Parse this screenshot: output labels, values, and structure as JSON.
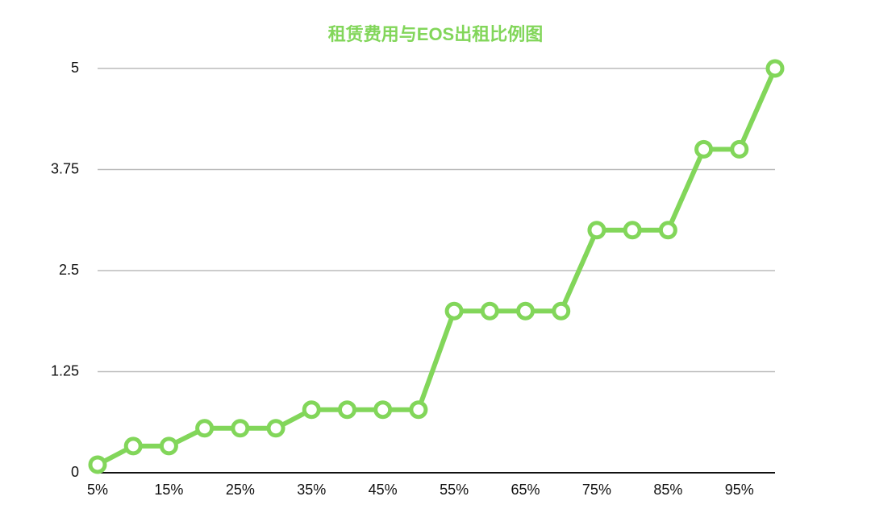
{
  "chart_data": {
    "type": "line",
    "title": "租赁费用与EOS出租比例图",
    "categories": [
      "5%",
      null,
      "15%",
      null,
      "25%",
      null,
      "35%",
      null,
      "45%",
      null,
      "55%",
      null,
      "65%",
      null,
      "75%",
      null,
      "85%",
      null,
      "95%",
      null
    ],
    "values": [
      0.1,
      0.33,
      0.33,
      0.55,
      0.55,
      0.55,
      0.78,
      0.78,
      0.78,
      0.78,
      2,
      2,
      2,
      2,
      3,
      3,
      3,
      4,
      4,
      5
    ],
    "color": "#82d65a",
    "ylim": [
      0,
      5
    ],
    "yticks": [
      0,
      1.25,
      2.5,
      3.75,
      5
    ],
    "grid": true
  }
}
